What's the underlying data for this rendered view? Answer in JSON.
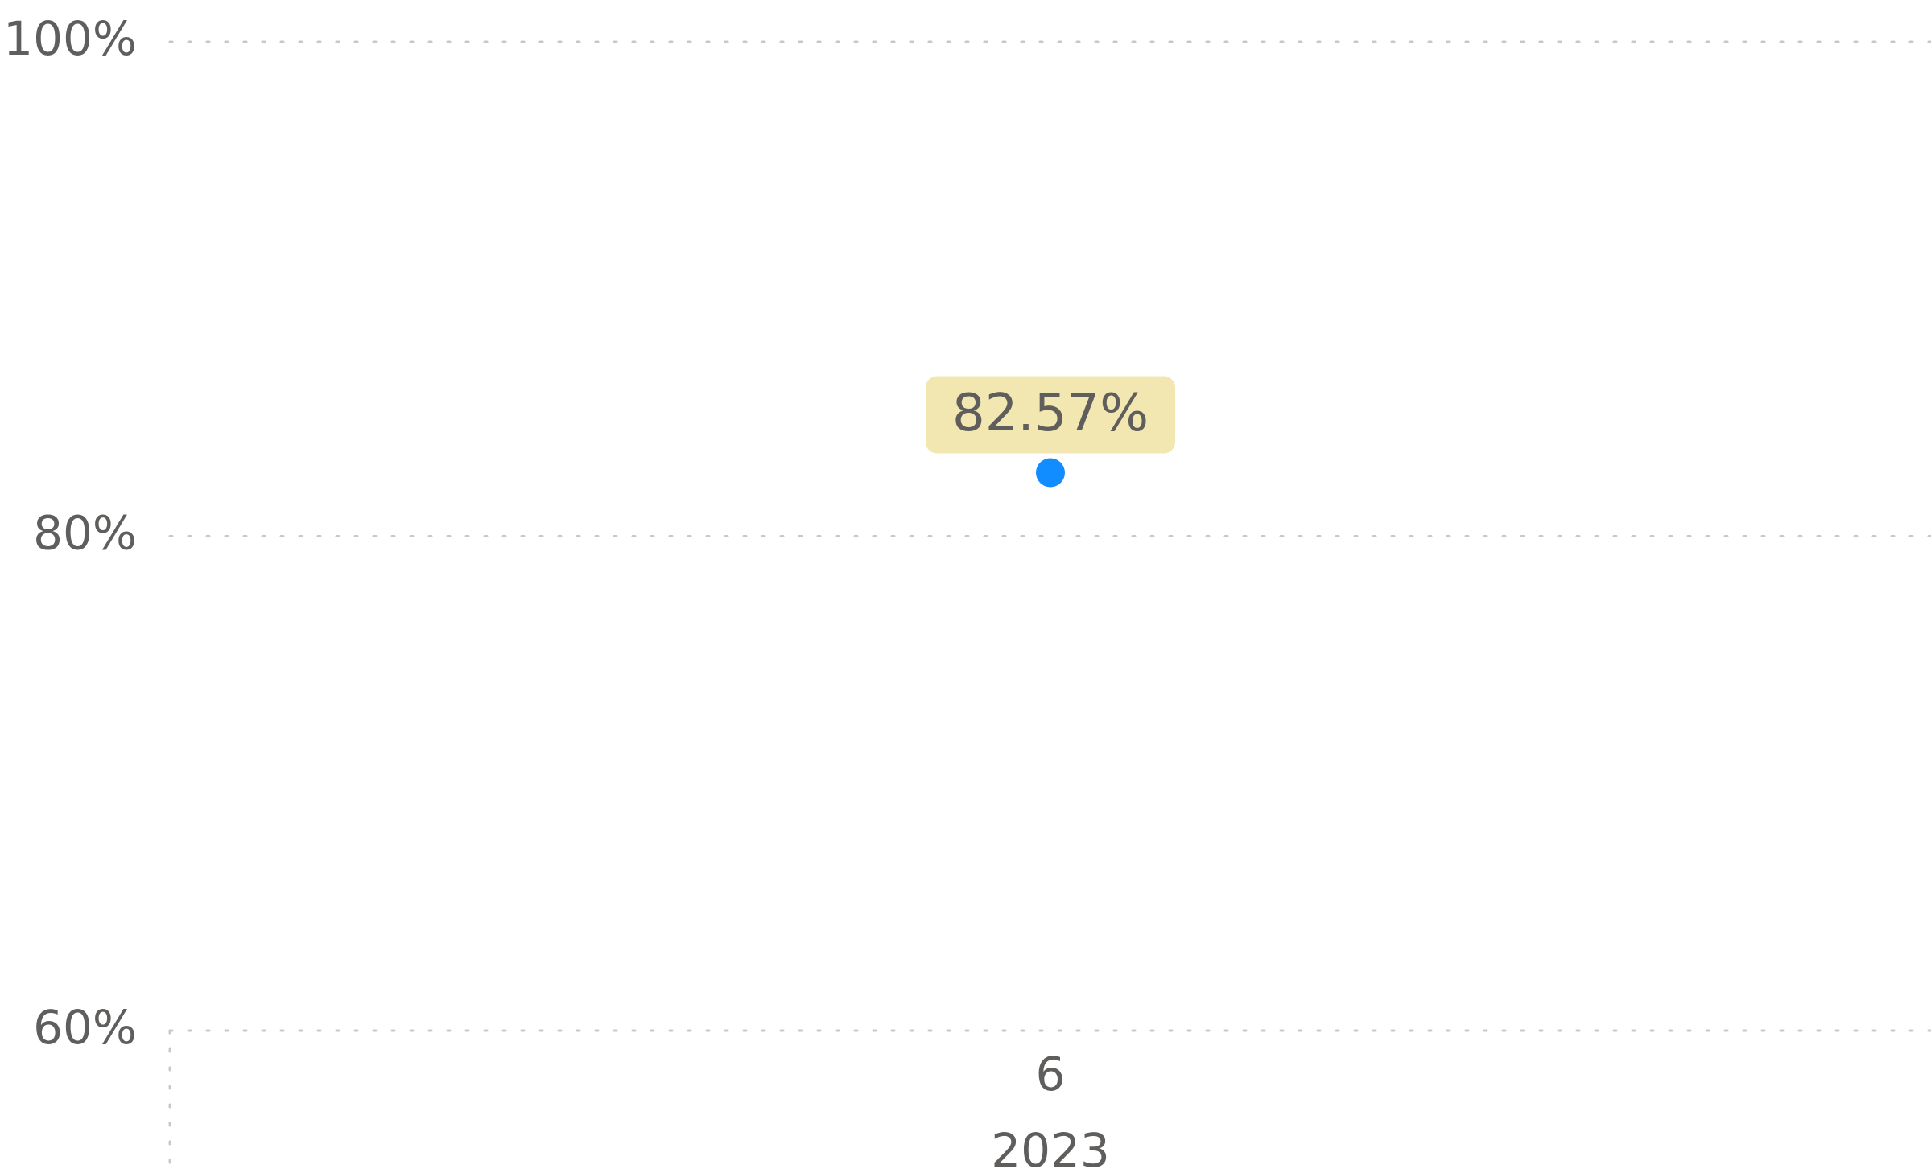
{
  "chart_data": {
    "type": "line",
    "categories": [
      "6"
    ],
    "category_groups": [
      "2023"
    ],
    "series": [
      {
        "color": "#118dff",
        "values": [
          82.57
        ],
        "value_labels": [
          "82.57%"
        ]
      }
    ],
    "ylim": [
      60,
      100
    ],
    "yticks": [
      {
        "value": 60,
        "label": "60%"
      },
      {
        "value": 80,
        "label": "80%"
      },
      {
        "value": 100,
        "label": "100%"
      }
    ],
    "grid": true
  }
}
